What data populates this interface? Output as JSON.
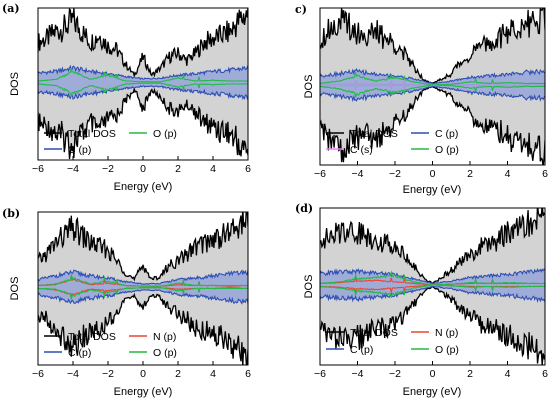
{
  "colors": {
    "total": "#000000",
    "total_fill": "#d3d3d3",
    "C_p": "#2f4fb4",
    "C_p_fill": "#8c9fd8",
    "C_s": "#ee82ee",
    "O_p": "#22bb44",
    "N_p": "#ee4433"
  },
  "chart_data": [
    {
      "panel": "(a)",
      "type": "area",
      "xlabel": "Energy (eV)",
      "ylabel": "DOS",
      "xlim": [
        -6,
        6
      ],
      "xticks": [
        "−6",
        "−4",
        "−2",
        "0",
        "2",
        "4",
        "6"
      ],
      "series": [
        {
          "name": "Total DOS",
          "color": "total",
          "x": [
            -6,
            -5.5,
            -5,
            -4.5,
            -4,
            -3.5,
            -3,
            -2.5,
            -2,
            -1.5,
            -1,
            -0.5,
            0,
            0.5,
            1,
            1.5,
            2,
            2.5,
            3,
            3.5,
            4,
            4.5,
            5,
            5.5,
            6
          ],
          "y": [
            0.55,
            0.6,
            0.7,
            0.75,
            0.85,
            0.7,
            0.55,
            0.65,
            0.5,
            0.45,
            0.25,
            0.1,
            0.35,
            0.1,
            0.2,
            0.35,
            0.4,
            0.3,
            0.4,
            0.55,
            0.6,
            0.65,
            0.7,
            0.85,
            0.95
          ]
        },
        {
          "name": "C (p)",
          "color": "C_p",
          "x": [
            -6,
            -5,
            -4,
            -3,
            -2,
            -1,
            0,
            1,
            2,
            3,
            4,
            5,
            6
          ],
          "y": [
            0.13,
            0.15,
            0.2,
            0.15,
            0.12,
            0.08,
            0.05,
            0.06,
            0.1,
            0.12,
            0.15,
            0.17,
            0.2
          ]
        },
        {
          "name": "O (p)",
          "color": "O_p",
          "x": [
            -6,
            -5,
            -4,
            -3,
            -2,
            -1,
            0,
            1,
            2,
            3,
            4,
            5,
            6
          ],
          "y": [
            0.02,
            0.04,
            0.15,
            0.04,
            0.1,
            0.02,
            0.01,
            0.01,
            0.06,
            0.02,
            0.03,
            0.02,
            0.02
          ]
        }
      ]
    },
    {
      "panel": "(b)",
      "type": "area",
      "xlabel": "Energy (eV)",
      "ylabel": "DOS",
      "xlim": [
        -6,
        6
      ],
      "xticks": [
        "−6",
        "−4",
        "−2",
        "0",
        "2",
        "4",
        "6"
      ],
      "series": [
        {
          "name": "Total DOS",
          "color": "total",
          "x": [
            -6,
            -5.5,
            -5,
            -4.5,
            -4,
            -3.5,
            -3,
            -2.5,
            -2,
            -1.5,
            -1,
            -0.5,
            0,
            0.5,
            1,
            1.5,
            2,
            2.5,
            3,
            3.5,
            4,
            4.5,
            5,
            5.5,
            6
          ],
          "y": [
            0.35,
            0.45,
            0.6,
            0.7,
            0.8,
            0.7,
            0.6,
            0.55,
            0.5,
            0.35,
            0.2,
            0.1,
            0.3,
            0.1,
            0.15,
            0.3,
            0.35,
            0.45,
            0.55,
            0.6,
            0.65,
            0.7,
            0.75,
            0.85,
            0.95
          ]
        },
        {
          "name": "C (p)",
          "color": "C_p",
          "x": [
            -6,
            -5,
            -4,
            -3,
            -2,
            -1,
            0,
            1,
            2,
            3,
            4,
            5,
            6
          ],
          "y": [
            0.1,
            0.15,
            0.2,
            0.15,
            0.12,
            0.07,
            0.04,
            0.05,
            0.1,
            0.12,
            0.15,
            0.18,
            0.2
          ]
        },
        {
          "name": "N (p)",
          "color": "N_p",
          "x": [
            -6,
            -5,
            -4,
            -3,
            -2,
            -1,
            0,
            1,
            2,
            3,
            4,
            5,
            6
          ],
          "y": [
            0.02,
            0.04,
            0.1,
            0.03,
            0.05,
            0.02,
            0.01,
            0.01,
            0.03,
            0.02,
            0.02,
            0.01,
            0.02
          ]
        },
        {
          "name": "O (p)",
          "color": "O_p",
          "x": [
            -6,
            -5,
            -4,
            -3,
            -2,
            -1,
            0,
            1,
            2,
            3,
            4,
            5,
            6
          ],
          "y": [
            0.02,
            0.03,
            0.12,
            0.04,
            0.08,
            0.02,
            0.01,
            0.01,
            0.05,
            0.02,
            0.02,
            0.02,
            0.02
          ]
        }
      ]
    },
    {
      "panel": "c)",
      "type": "area",
      "xlabel": "Energy (eV)",
      "ylabel": "DOS",
      "xlim": [
        -6,
        6
      ],
      "xticks": [
        "−6",
        "−4",
        "−2",
        "0",
        "2",
        "4",
        "6"
      ],
      "series": [
        {
          "name": "Total DOS",
          "color": "total",
          "x": [
            -6,
            -5.5,
            -5,
            -4.5,
            -4,
            -3.5,
            -3,
            -2.5,
            -2,
            -1.5,
            -1,
            -0.5,
            0,
            0.5,
            1,
            1.5,
            2,
            2.5,
            3,
            3.5,
            4,
            4.5,
            5,
            5.5,
            6
          ],
          "y": [
            0.6,
            0.75,
            0.85,
            0.8,
            0.7,
            0.65,
            0.7,
            0.6,
            0.55,
            0.4,
            0.25,
            0.08,
            0.02,
            0.08,
            0.15,
            0.3,
            0.4,
            0.5,
            0.55,
            0.6,
            0.7,
            0.75,
            0.8,
            0.85,
            0.9
          ]
        },
        {
          "name": "C (s)",
          "color": "C_s",
          "x": [
            -6,
            -3,
            0,
            3,
            6
          ],
          "y": [
            0.01,
            0.01,
            0.0,
            0.01,
            0.01
          ]
        },
        {
          "name": "C (p)",
          "color": "C_p",
          "x": [
            -6,
            -5,
            -4,
            -3,
            -2,
            -1,
            0,
            1,
            2,
            3,
            4,
            5,
            6
          ],
          "y": [
            0.12,
            0.15,
            0.18,
            0.14,
            0.12,
            0.08,
            0.02,
            0.05,
            0.1,
            0.12,
            0.14,
            0.17,
            0.18
          ]
        },
        {
          "name": "O (p)",
          "color": "O_p",
          "x": [
            -6,
            -5,
            -4,
            -3,
            -2,
            -1,
            0,
            1,
            2,
            3,
            4,
            5,
            6
          ],
          "y": [
            0.02,
            0.05,
            0.12,
            0.05,
            0.1,
            0.04,
            0.0,
            0.01,
            0.04,
            0.02,
            0.03,
            0.02,
            0.02
          ]
        }
      ]
    },
    {
      "panel": "(d)",
      "type": "area",
      "xlabel": "Energy (eV)",
      "ylabel": "DOS",
      "xlim": [
        -6,
        6
      ],
      "xticks": [
        "−6",
        "−4",
        "−2",
        "0",
        "2",
        "4",
        "6"
      ],
      "series": [
        {
          "name": "Total DOS",
          "color": "total",
          "x": [
            -6,
            -5.5,
            -5,
            -4.5,
            -4,
            -3.5,
            -3,
            -2.5,
            -2,
            -1.5,
            -1,
            -0.5,
            0,
            0.5,
            1,
            1.5,
            2,
            2.5,
            3,
            3.5,
            4,
            4.5,
            5,
            5.5,
            6
          ],
          "y": [
            0.65,
            0.6,
            0.7,
            0.75,
            0.7,
            0.65,
            0.6,
            0.55,
            0.55,
            0.4,
            0.25,
            0.1,
            0.02,
            0.1,
            0.2,
            0.3,
            0.4,
            0.5,
            0.55,
            0.6,
            0.7,
            0.75,
            0.8,
            0.85,
            0.95
          ]
        },
        {
          "name": "C (p)",
          "color": "C_p",
          "x": [
            -6,
            -5,
            -4,
            -3,
            -2,
            -1,
            0,
            1,
            2,
            3,
            4,
            5,
            6
          ],
          "y": [
            0.15,
            0.17,
            0.18,
            0.16,
            0.14,
            0.08,
            0.02,
            0.05,
            0.1,
            0.12,
            0.14,
            0.17,
            0.2
          ]
        },
        {
          "name": "N (p)",
          "color": "N_p",
          "x": [
            -6,
            -5,
            -4,
            -3,
            -2,
            -1,
            0,
            1,
            2,
            3,
            4,
            5,
            6
          ],
          "y": [
            0.02,
            0.03,
            0.05,
            0.06,
            0.04,
            0.02,
            0.0,
            0.01,
            0.02,
            0.02,
            0.02,
            0.02,
            0.02
          ]
        },
        {
          "name": "O (p)",
          "color": "O_p",
          "x": [
            -6,
            -5,
            -4,
            -3,
            -2,
            -1,
            0,
            1,
            2,
            3,
            4,
            5,
            6
          ],
          "y": [
            0.02,
            0.04,
            0.08,
            0.1,
            0.12,
            0.04,
            0.0,
            0.01,
            0.03,
            0.02,
            0.03,
            0.02,
            0.02
          ]
        }
      ]
    }
  ]
}
